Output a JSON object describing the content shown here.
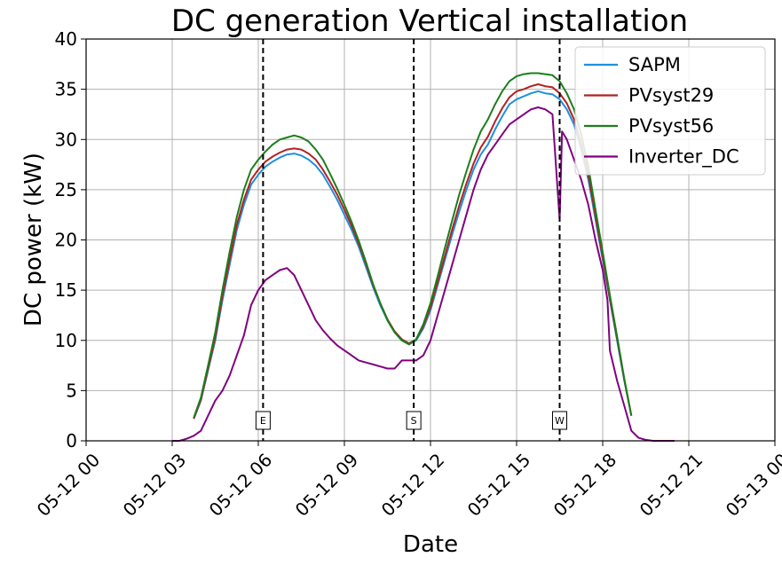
{
  "chart_data": {
    "type": "line",
    "title": "DC generation Vertical installation",
    "xlabel": "Date",
    "ylabel": "DC power (kW)",
    "xlim": [
      "05-12 00:00",
      "05-13 00:00"
    ],
    "ylim": [
      0,
      40
    ],
    "grid": true,
    "legend": "top-right",
    "x_ticks": [
      0,
      3,
      6,
      9,
      12,
      15,
      18,
      21,
      24
    ],
    "x_tick_labels": [
      "05-12 00",
      "05-12 03",
      "05-12 06",
      "05-12 09",
      "05-12 12",
      "05-12 15",
      "05-12 18",
      "05-12 21",
      "05-13 00"
    ],
    "y_ticks": [
      0,
      5,
      10,
      15,
      20,
      25,
      30,
      35,
      40
    ],
    "y_tick_labels": [
      "0",
      "5",
      "10",
      "15",
      "20",
      "25",
      "30",
      "35",
      "40"
    ],
    "series": [
      {
        "name": "SAPM",
        "color": "#1f8fde",
        "x": [
          "03:45",
          "04:00",
          "04:15",
          "04:30",
          "04:45",
          "05:00",
          "05:15",
          "05:30",
          "05:45",
          "06:00",
          "06:15",
          "06:30",
          "06:45",
          "07:00",
          "07:15",
          "07:30",
          "07:45",
          "08:00",
          "08:15",
          "08:30",
          "08:45",
          "09:00",
          "09:15",
          "09:30",
          "09:45",
          "10:00",
          "10:15",
          "10:30",
          "10:45",
          "11:00",
          "11:15",
          "11:30",
          "11:45",
          "12:00",
          "12:15",
          "12:30",
          "12:45",
          "13:00",
          "13:15",
          "13:30",
          "13:45",
          "14:00",
          "14:15",
          "14:30",
          "14:45",
          "15:00",
          "15:15",
          "15:30",
          "15:45",
          "16:00",
          "16:15",
          "16:30",
          "16:45",
          "17:00",
          "17:15",
          "17:30",
          "17:45",
          "18:00",
          "18:15",
          "18:30",
          "18:45",
          "19:00"
        ],
        "y": [
          2.2,
          4.0,
          7.0,
          10.0,
          14.0,
          17.5,
          21.0,
          23.5,
          25.5,
          26.5,
          27.3,
          27.8,
          28.2,
          28.5,
          28.6,
          28.4,
          28.0,
          27.4,
          26.5,
          25.3,
          24.0,
          22.5,
          21.0,
          19.3,
          17.3,
          15.3,
          13.5,
          12.0,
          10.8,
          10.0,
          9.6,
          10.0,
          11.2,
          13.0,
          15.5,
          18.0,
          20.5,
          22.8,
          25.0,
          27.0,
          28.5,
          29.5,
          31.0,
          32.3,
          33.5,
          34.0,
          34.3,
          34.6,
          34.8,
          34.6,
          34.5,
          34.0,
          33.0,
          31.5,
          29.0,
          26.0,
          22.0,
          18.0,
          14.0,
          10.0,
          6.0,
          2.5
        ]
      },
      {
        "name": "PVsyst29",
        "color": "#b22222",
        "x": [
          "03:45",
          "04:00",
          "04:15",
          "04:30",
          "04:45",
          "05:00",
          "05:15",
          "05:30",
          "05:45",
          "06:00",
          "06:15",
          "06:30",
          "06:45",
          "07:00",
          "07:15",
          "07:30",
          "07:45",
          "08:00",
          "08:15",
          "08:30",
          "08:45",
          "09:00",
          "09:15",
          "09:30",
          "09:45",
          "10:00",
          "10:15",
          "10:30",
          "10:45",
          "11:00",
          "11:15",
          "11:30",
          "11:45",
          "12:00",
          "12:15",
          "12:30",
          "12:45",
          "13:00",
          "13:15",
          "13:30",
          "13:45",
          "14:00",
          "14:15",
          "14:30",
          "14:45",
          "15:00",
          "15:15",
          "15:30",
          "15:45",
          "16:00",
          "16:15",
          "16:30",
          "16:45",
          "17:00",
          "17:15",
          "17:30",
          "17:45",
          "18:00",
          "18:15",
          "18:30",
          "18:45",
          "19:00"
        ],
        "y": [
          2.2,
          4.1,
          7.2,
          10.3,
          14.4,
          18.0,
          21.5,
          24.0,
          26.0,
          27.0,
          27.8,
          28.3,
          28.7,
          29.0,
          29.1,
          29.0,
          28.6,
          28.0,
          27.0,
          25.8,
          24.5,
          23.0,
          21.4,
          19.6,
          17.6,
          15.5,
          13.7,
          12.1,
          10.9,
          10.1,
          9.7,
          10.1,
          11.4,
          13.3,
          15.8,
          18.4,
          21.0,
          23.4,
          25.6,
          27.6,
          29.2,
          30.3,
          31.8,
          33.1,
          34.2,
          34.8,
          35.0,
          35.3,
          35.5,
          35.3,
          35.2,
          34.6,
          33.6,
          32.0,
          29.5,
          26.5,
          22.4,
          18.3,
          14.2,
          10.2,
          6.1,
          2.5
        ]
      },
      {
        "name": "PVsyst56",
        "color": "#1a7f1a",
        "x": [
          "03:45",
          "04:00",
          "04:15",
          "04:30",
          "04:45",
          "05:00",
          "05:15",
          "05:30",
          "05:45",
          "06:00",
          "06:15",
          "06:30",
          "06:45",
          "07:00",
          "07:15",
          "07:30",
          "07:45",
          "08:00",
          "08:15",
          "08:30",
          "08:45",
          "09:00",
          "09:15",
          "09:30",
          "09:45",
          "10:00",
          "10:15",
          "10:30",
          "10:45",
          "11:00",
          "11:15",
          "11:30",
          "11:45",
          "12:00",
          "12:15",
          "12:30",
          "12:45",
          "13:00",
          "13:15",
          "13:30",
          "13:45",
          "14:00",
          "14:15",
          "14:30",
          "14:45",
          "15:00",
          "15:15",
          "15:30",
          "15:45",
          "16:00",
          "16:15",
          "16:30",
          "16:45",
          "17:00",
          "17:15",
          "17:30",
          "17:45",
          "18:00",
          "18:15",
          "18:30",
          "18:45",
          "19:00"
        ],
        "y": [
          2.3,
          4.3,
          7.5,
          10.8,
          15.0,
          18.8,
          22.3,
          25.0,
          27.0,
          28.0,
          28.8,
          29.5,
          30.0,
          30.2,
          30.4,
          30.2,
          29.8,
          29.0,
          28.0,
          26.6,
          25.1,
          23.5,
          21.8,
          19.9,
          17.8,
          15.6,
          13.7,
          12.0,
          10.8,
          10.0,
          9.6,
          10.1,
          11.6,
          13.7,
          16.4,
          19.2,
          21.9,
          24.5,
          26.8,
          29.0,
          30.8,
          32.0,
          33.5,
          34.8,
          35.8,
          36.3,
          36.5,
          36.6,
          36.6,
          36.5,
          36.4,
          35.8,
          34.6,
          33.0,
          30.5,
          27.3,
          23.0,
          18.8,
          14.5,
          10.4,
          6.2,
          2.5
        ]
      },
      {
        "name": "Inverter_DC",
        "color": "#800080",
        "x": [
          "03:00",
          "03:15",
          "03:30",
          "03:45",
          "04:00",
          "04:15",
          "04:30",
          "04:45",
          "05:00",
          "05:15",
          "05:30",
          "05:45",
          "06:00",
          "06:15",
          "06:30",
          "06:45",
          "07:00",
          "07:15",
          "07:30",
          "07:45",
          "08:00",
          "08:15",
          "08:30",
          "08:45",
          "09:00",
          "09:15",
          "09:30",
          "09:45",
          "10:00",
          "10:15",
          "10:30",
          "10:45",
          "11:00",
          "11:15",
          "11:30",
          "11:45",
          "12:00",
          "12:15",
          "12:30",
          "12:45",
          "13:00",
          "13:15",
          "13:30",
          "13:45",
          "14:00",
          "14:15",
          "14:30",
          "14:45",
          "15:00",
          "15:15",
          "15:30",
          "15:45",
          "16:00",
          "16:15",
          "16:30",
          "16:35",
          "16:45",
          "17:00",
          "17:15",
          "17:30",
          "17:45",
          "18:00",
          "18:10",
          "18:15",
          "18:30",
          "18:45",
          "19:00",
          "19:15",
          "19:30",
          "19:45",
          "20:00",
          "20:30"
        ],
        "y": [
          0.0,
          0.0,
          0.2,
          0.5,
          1.0,
          2.5,
          4.0,
          5.0,
          6.5,
          8.5,
          10.5,
          13.5,
          15.0,
          16.0,
          16.5,
          17.0,
          17.2,
          16.5,
          15.0,
          13.5,
          12.0,
          11.0,
          10.2,
          9.5,
          9.0,
          8.5,
          8.0,
          7.8,
          7.6,
          7.4,
          7.2,
          7.2,
          8.0,
          8.0,
          8.0,
          8.5,
          10.0,
          12.5,
          15.0,
          17.5,
          20.0,
          22.5,
          25.0,
          27.0,
          28.5,
          29.5,
          30.5,
          31.5,
          32.0,
          32.5,
          33.0,
          33.2,
          33.0,
          32.5,
          22.0,
          30.8,
          30.0,
          28.0,
          26.0,
          23.5,
          20.0,
          17.0,
          14.0,
          9.0,
          6.0,
          3.5,
          1.0,
          0.3,
          0.1,
          0.0,
          0.0,
          0.0
        ]
      }
    ],
    "vlines": [
      {
        "x": "06:10",
        "label": "E",
        "style": "dashed",
        "color": "#000000"
      },
      {
        "x": "11:25",
        "label": "S",
        "style": "dashed",
        "color": "#000000"
      },
      {
        "x": "16:30",
        "label": "W",
        "style": "dashed",
        "color": "#000000"
      }
    ]
  }
}
